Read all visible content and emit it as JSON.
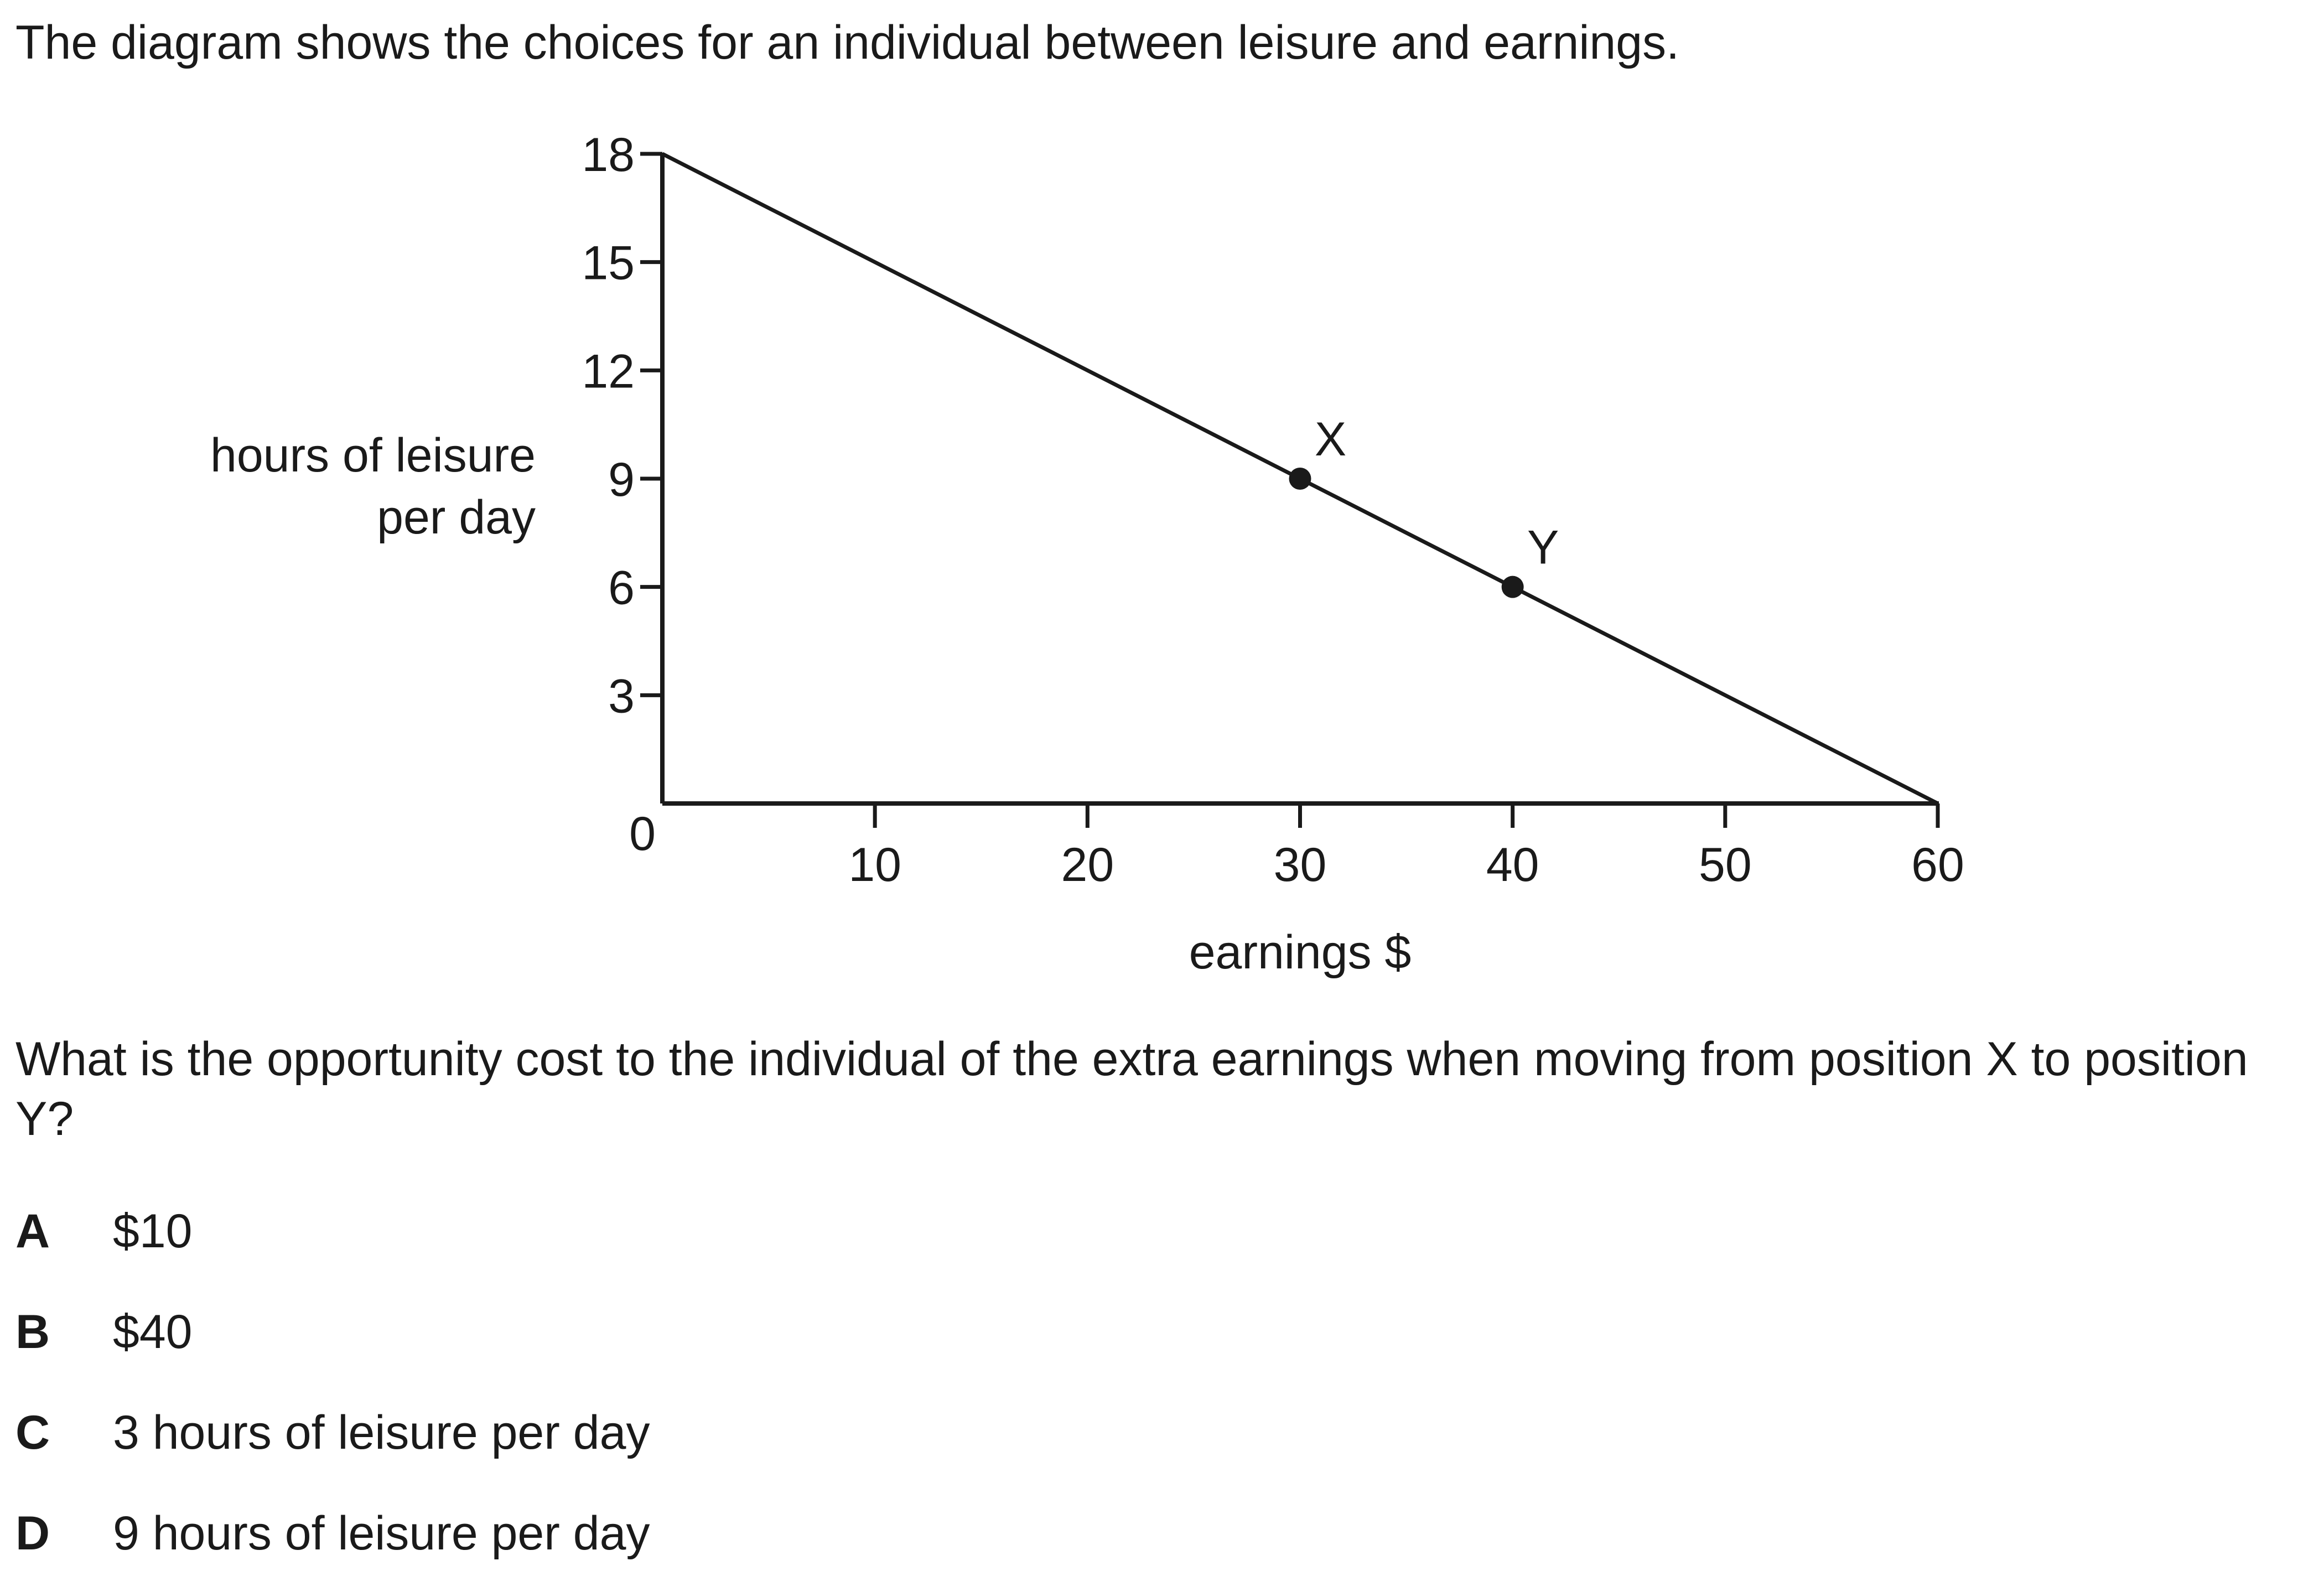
{
  "intro": "The diagram shows the choices for an individual between leisure and earnings.",
  "chart_data": {
    "type": "line",
    "title": "",
    "xlabel": "earnings $",
    "ylabel": [
      "hours of leisure",
      "per day"
    ],
    "xlim": [
      0,
      60
    ],
    "ylim": [
      0,
      18
    ],
    "x_ticks": [
      10,
      20,
      30,
      40,
      50,
      60
    ],
    "y_ticks": [
      3,
      6,
      9,
      12,
      15,
      18
    ],
    "origin_label": "0",
    "grid": false,
    "series": [
      {
        "x": [
          0,
          60
        ],
        "y": [
          18,
          0
        ]
      }
    ],
    "points": [
      {
        "label": "X",
        "x": 30,
        "y": 9
      },
      {
        "label": "Y",
        "x": 40,
        "y": 6
      }
    ]
  },
  "question": "What is the opportunity cost to the individual of the extra earnings when moving from position X to position Y?",
  "options": [
    {
      "letter": "A",
      "text": "$10"
    },
    {
      "letter": "B",
      "text": "$40"
    },
    {
      "letter": "C",
      "text": "3 hours of leisure per day"
    },
    {
      "letter": "D",
      "text": "9 hours of leisure per day"
    }
  ]
}
